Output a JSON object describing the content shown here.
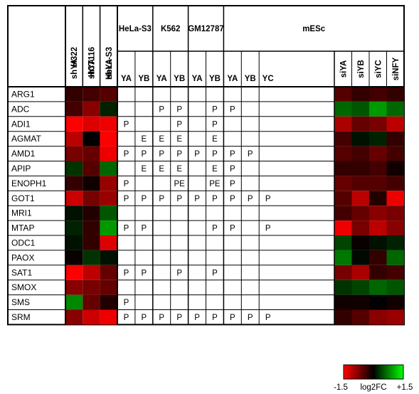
{
  "chart_data": {
    "type": "heatmap",
    "group_headers": [
      "HeLa-S3",
      "K562",
      "GM12787",
      "mESc"
    ],
    "left_column_headers": [
      "H322",
      "HCT116",
      "HeLa-S3"
    ],
    "left_column_subheaders": [
      "shYA",
      "shYA",
      "shYA"
    ],
    "chip_subheaders": [
      "YA",
      "YB",
      "YA",
      "YB",
      "YA",
      "YB",
      "YA",
      "YB",
      "YC"
    ],
    "right_column_subheaders": [
      "siYA",
      "siYB",
      "siYC",
      "siNFY"
    ],
    "genes": [
      "ARG1",
      "ADC",
      "ADI1",
      "AGMAT",
      "AMD1",
      "APIP",
      "ENOPH1",
      "GOT1",
      "MRI1",
      "MTAP",
      "ODC1",
      "PAOX",
      "SAT1",
      "SMOX",
      "SMS",
      "SRM"
    ],
    "left_values": [
      [
        -0.3,
        -0.4,
        -0.5
      ],
      [
        -0.4,
        -0.8,
        0.2
      ],
      [
        -1.5,
        -1.3,
        -1.4
      ],
      [
        -1.1,
        0.0,
        -1.5
      ],
      [
        -0.7,
        -0.6,
        -1.4
      ],
      [
        0.3,
        -0.5,
        0.6
      ],
      [
        -0.3,
        -0.1,
        -0.9
      ],
      [
        -1.2,
        -0.7,
        -0.9
      ],
      [
        0.1,
        -0.2,
        0.5
      ],
      [
        0.2,
        -0.3,
        0.9
      ],
      [
        0.1,
        -0.3,
        -1.3
      ],
      [
        -0.05,
        0.3,
        0.1
      ],
      [
        -1.5,
        -1.1,
        -0.6
      ],
      [
        -0.8,
        -0.7,
        -0.6
      ],
      [
        0.8,
        -0.6,
        -0.2
      ],
      [
        -0.8,
        -1.2,
        -1.4
      ]
    ],
    "chip_marks": [
      [
        "",
        "",
        "",
        "",
        "",
        "",
        "",
        "",
        ""
      ],
      [
        "",
        "",
        "P",
        "P",
        "",
        "P",
        "P",
        "",
        ""
      ],
      [
        "P",
        "",
        "",
        "P",
        "",
        "P",
        "",
        "",
        ""
      ],
      [
        "",
        "E",
        "E",
        "E",
        "",
        "E",
        "",
        "",
        ""
      ],
      [
        "P",
        "P",
        "P",
        "P",
        "P",
        "P",
        "P",
        "P",
        ""
      ],
      [
        "",
        "E",
        "E",
        "E",
        "",
        "E",
        "P",
        "",
        ""
      ],
      [
        "P",
        "",
        "",
        "PE",
        "",
        "PE",
        "P",
        "",
        ""
      ],
      [
        "P",
        "P",
        "P",
        "P",
        "P",
        "P",
        "P",
        "P",
        "P"
      ],
      [
        "",
        "",
        "",
        "",
        "",
        "",
        "",
        "",
        ""
      ],
      [
        "P",
        "P",
        "",
        "",
        "",
        "P",
        "P",
        "",
        "P"
      ],
      [
        "",
        "",
        "",
        "",
        "",
        "",
        "",
        "",
        ""
      ],
      [
        "",
        "",
        "",
        "",
        "",
        "",
        "",
        "",
        ""
      ],
      [
        "P",
        "P",
        "",
        "P",
        "",
        "P",
        "",
        "",
        ""
      ],
      [
        "",
        "",
        "",
        "",
        "",
        "",
        "",
        "",
        ""
      ],
      [
        "P",
        "",
        "",
        "",
        "",
        "",
        "",
        "",
        ""
      ],
      [
        "P",
        "P",
        "P",
        "P",
        "P",
        "P",
        "P",
        "P",
        "P"
      ]
    ],
    "right_values": [
      [
        -0.5,
        -0.3,
        -0.4,
        -0.3
      ],
      [
        0.6,
        0.5,
        0.9,
        0.6
      ],
      [
        -1.0,
        -0.6,
        -0.7,
        -1.1
      ],
      [
        -0.4,
        0.1,
        0.2,
        -0.3
      ],
      [
        -0.5,
        -0.4,
        -0.6,
        -0.4
      ],
      [
        -0.3,
        -0.3,
        -0.4,
        -0.1
      ],
      [
        -0.6,
        -0.5,
        -0.5,
        -0.4
      ],
      [
        -0.5,
        -1.1,
        -0.2,
        -1.4
      ],
      [
        -0.4,
        -0.6,
        -0.8,
        -0.7
      ],
      [
        -1.4,
        -0.7,
        -1.1,
        -0.8
      ],
      [
        0.4,
        -0.05,
        0.1,
        0.2
      ],
      [
        0.7,
        0.05,
        -0.3,
        0.6
      ],
      [
        -0.7,
        -1.0,
        -0.3,
        -0.4
      ],
      [
        0.3,
        0.4,
        0.6,
        0.5
      ],
      [
        -0.1,
        -0.1,
        0.0,
        -0.1
      ],
      [
        -0.3,
        -0.5,
        -0.8,
        -0.9
      ]
    ],
    "colorscale": {
      "min": -1.5,
      "max": 1.5,
      "low_color": "#ff0000",
      "mid_color": "#000000",
      "high_color": "#00ff00"
    },
    "legend": {
      "label": "log2FC",
      "min_label": "-1.5",
      "max_label": "+1.5",
      "placement": "bottom-right"
    }
  }
}
